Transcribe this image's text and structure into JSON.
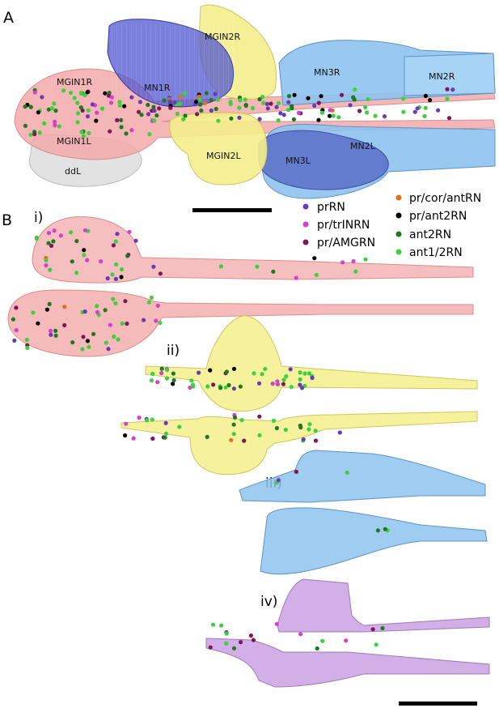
{
  "figure": {
    "panel_a_label": "A",
    "panel_b_label": "B",
    "region_labels": {
      "mgin2r": "MGIN2R",
      "mn1r": "MN1R",
      "mgin1r": "MGIN1R",
      "mn3r": "MN3R",
      "mn2r": "MN2R",
      "mgin1l": "MGIN1L",
      "mgin2l": "MGIN2L",
      "mn3l": "MN3L",
      "mn2l": "MN2L",
      "ddl": "ddL"
    },
    "sub_labels": {
      "i": "i)",
      "ii": "ii)",
      "iii": "iii)",
      "iv": "iv)"
    },
    "legend": [
      {
        "label": "prRN",
        "color": "#6a3bb8"
      },
      {
        "label": "pr/trINRN",
        "color": "#d63fd0"
      },
      {
        "label": "pr/AMGRN",
        "color": "#7a1a5a"
      },
      {
        "label": "pr/cor/antRN",
        "color": "#d9731e"
      },
      {
        "label": "pr/ant2RN",
        "color": "#000000"
      },
      {
        "label": "ant2RN",
        "color": "#1e7a1e"
      },
      {
        "label": "ant1/2RN",
        "color": "#3fcf3f"
      }
    ],
    "colors": {
      "mgin1": "#f2a9a9",
      "mgin2": "#f4ee8c",
      "mn1": "#4f55d0",
      "mn2_mn3": "#8ec3ee",
      "mn3l_dark": "#5b6fc8",
      "ddl": "#e2e2e2",
      "iv_region": "#c79be0"
    }
  }
}
